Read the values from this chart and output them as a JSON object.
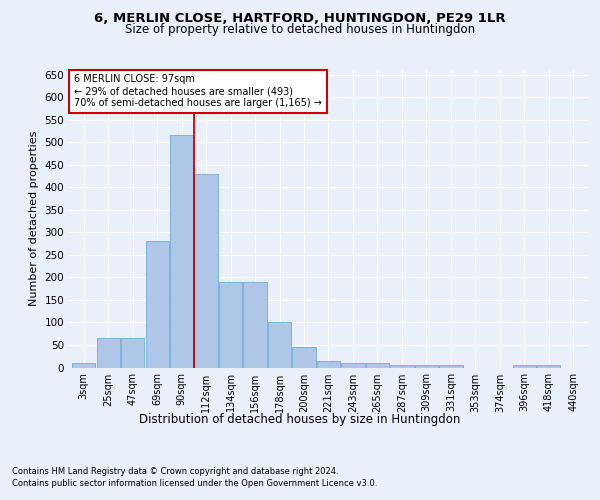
{
  "title1": "6, MERLIN CLOSE, HARTFORD, HUNTINGDON, PE29 1LR",
  "title2": "Size of property relative to detached houses in Huntingdon",
  "xlabel": "Distribution of detached houses by size in Huntingdon",
  "ylabel": "Number of detached properties",
  "footnote1": "Contains HM Land Registry data © Crown copyright and database right 2024.",
  "footnote2": "Contains public sector information licensed under the Open Government Licence v3.0.",
  "bin_labels": [
    "3sqm",
    "25sqm",
    "47sqm",
    "69sqm",
    "90sqm",
    "112sqm",
    "134sqm",
    "156sqm",
    "178sqm",
    "200sqm",
    "221sqm",
    "243sqm",
    "265sqm",
    "287sqm",
    "309sqm",
    "331sqm",
    "353sqm",
    "374sqm",
    "396sqm",
    "418sqm",
    "440sqm"
  ],
  "bar_heights": [
    10,
    65,
    65,
    280,
    515,
    430,
    190,
    190,
    100,
    45,
    15,
    10,
    10,
    5,
    5,
    5,
    0,
    0,
    5,
    5,
    0
  ],
  "bar_color": "#aec6e8",
  "bar_edge_color": "#6baed6",
  "red_line_x": 4.52,
  "red_line_color": "#cc0000",
  "annotation_line1": "6 MERLIN CLOSE: 97sqm",
  "annotation_line2": "← 29% of detached houses are smaller (493)",
  "annotation_line3": "70% of semi-detached houses are larger (1,165) →",
  "annotation_box_color": "white",
  "annotation_box_edge_color": "#cc0000",
  "ylim": [
    0,
    660
  ],
  "yticks": [
    0,
    50,
    100,
    150,
    200,
    250,
    300,
    350,
    400,
    450,
    500,
    550,
    600,
    650
  ],
  "bg_color": "#eaf0f9",
  "plot_bg_color": "#eaf0f9",
  "grid_color": "white",
  "title1_fontsize": 9.5,
  "title2_fontsize": 8.5,
  "xlabel_fontsize": 8.5,
  "ylabel_fontsize": 8,
  "footnote_fontsize": 6
}
